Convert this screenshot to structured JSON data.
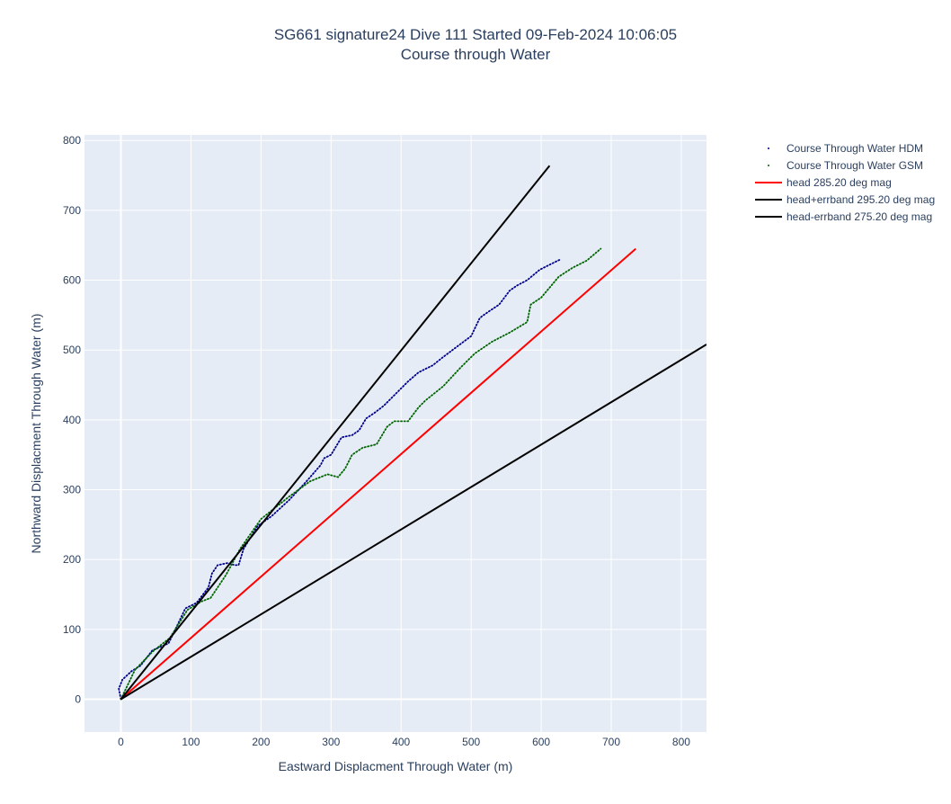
{
  "chart_data": {
    "type": "line",
    "title": "SG661 signature24 Dive 111 Started 09-Feb-2024 10:06:05",
    "subtitle": "Course through Water",
    "xlabel": "Eastward Displacment Through Water (m)",
    "ylabel": "Northward Displacment Through Water (m)",
    "xlim": [
      -52,
      836
    ],
    "ylim": [
      -47,
      808
    ],
    "xticks": [
      0,
      100,
      200,
      300,
      400,
      500,
      600,
      700,
      800
    ],
    "yticks": [
      0,
      100,
      200,
      300,
      400,
      500,
      600,
      700,
      800
    ],
    "grid": true,
    "legend_position": "top-right",
    "series": [
      {
        "name": "Course Through Water HDM",
        "style": "dotted",
        "color": "#00008b",
        "x": [
          0,
          -3,
          2,
          15,
          28,
          45,
          68,
          80,
          92,
          108,
          125,
          130,
          138,
          152,
          163,
          168,
          175,
          195,
          215,
          240,
          265,
          285,
          290,
          300,
          315,
          330,
          340,
          350,
          362,
          375,
          390,
          410,
          425,
          445,
          460,
          480,
          500,
          512,
          515,
          525,
          540,
          555,
          565,
          580,
          598,
          612,
          628
        ],
        "y": [
          0,
          15,
          28,
          40,
          48,
          70,
          80,
          105,
          130,
          138,
          160,
          180,
          192,
          195,
          192,
          192,
          215,
          248,
          262,
          285,
          312,
          335,
          345,
          350,
          375,
          378,
          385,
          402,
          410,
          420,
          435,
          455,
          468,
          478,
          490,
          505,
          520,
          545,
          548,
          555,
          565,
          585,
          592,
          600,
          615,
          622,
          630
        ]
      },
      {
        "name": "Course Through Water GSM",
        "style": "dotted",
        "color": "#006400",
        "x": [
          0,
          20,
          45,
          70,
          95,
          115,
          128,
          150,
          170,
          200,
          240,
          270,
          295,
          310,
          320,
          330,
          345,
          365,
          380,
          390,
          410,
          425,
          435,
          460,
          485,
          505,
          530,
          555,
          580,
          585,
          600,
          625,
          645,
          665,
          685
        ],
        "y": [
          0,
          42,
          68,
          88,
          128,
          140,
          145,
          178,
          215,
          258,
          290,
          312,
          322,
          318,
          330,
          350,
          360,
          365,
          390,
          398,
          398,
          418,
          428,
          448,
          475,
          495,
          512,
          525,
          540,
          565,
          575,
          605,
          618,
          628,
          645
        ]
      },
      {
        "name": "head 285.20 deg mag",
        "style": "solid",
        "color": "#ff0000",
        "x": [
          0,
          735
        ],
        "y": [
          0,
          645
        ]
      },
      {
        "name": "head+errband 295.20 deg mag",
        "style": "solid",
        "color": "#000000",
        "x": [
          0,
          612
        ],
        "y": [
          0,
          764
        ]
      },
      {
        "name": "head-errband 275.20 deg mag",
        "style": "solid",
        "color": "#000000",
        "x": [
          0,
          836
        ],
        "y": [
          0,
          508
        ]
      }
    ]
  }
}
